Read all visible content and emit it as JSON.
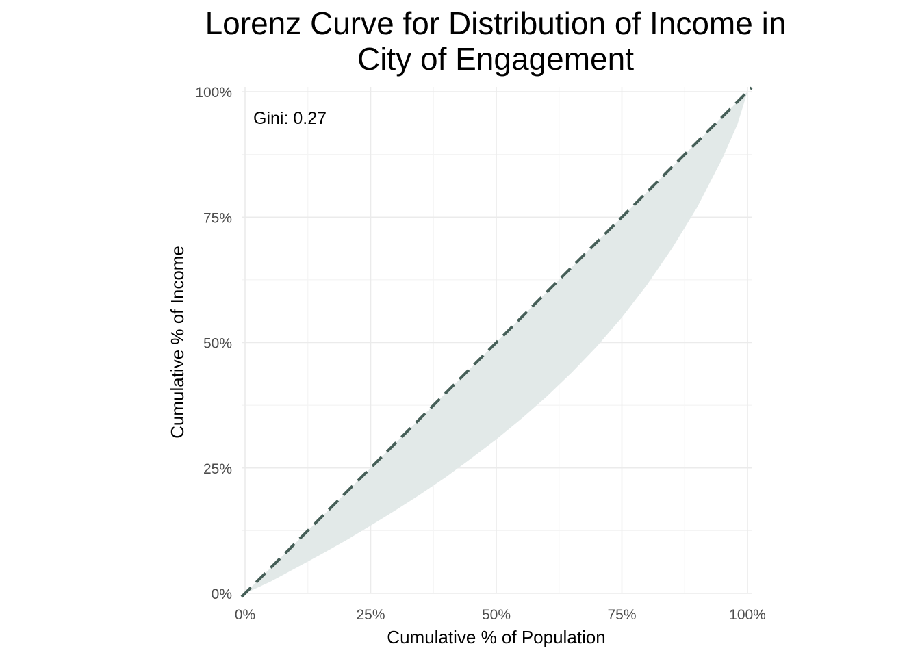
{
  "chart_data": {
    "type": "area",
    "title_lines": [
      "Lorenz Curve for Distribution of Income in",
      "City of Engagement"
    ],
    "xlabel": "Cumulative % of Population",
    "ylabel": "Cumulative % of Income",
    "xlim": [
      0,
      1
    ],
    "ylim": [
      0,
      1
    ],
    "x_ticks": [
      0,
      0.25,
      0.5,
      0.75,
      1
    ],
    "y_ticks": [
      0,
      0.25,
      0.5,
      0.75,
      1
    ],
    "x_tick_labels": [
      "0%",
      "25%",
      "50%",
      "75%",
      "100%"
    ],
    "y_tick_labels": [
      "0%",
      "25%",
      "50%",
      "75%",
      "100%"
    ],
    "minor_grid": [
      0.125,
      0.375,
      0.625,
      0.875
    ],
    "grid": true,
    "annotation": "Gini: 0.27",
    "series": [
      {
        "kind": "lorenz_curve",
        "x": [
          0,
          0.05,
          0.1,
          0.15,
          0.2,
          0.25,
          0.3,
          0.35,
          0.4,
          0.45,
          0.5,
          0.55,
          0.6,
          0.65,
          0.7,
          0.75,
          0.8,
          0.85,
          0.9,
          0.95,
          0.98,
          1
        ],
        "y": [
          0,
          0.023,
          0.05,
          0.077,
          0.105,
          0.135,
          0.166,
          0.198,
          0.232,
          0.269,
          0.307,
          0.348,
          0.392,
          0.44,
          0.492,
          0.55,
          0.615,
          0.688,
          0.77,
          0.867,
          0.935,
          1
        ]
      },
      {
        "kind": "line_of_equality",
        "x": [
          0,
          1
        ],
        "y": [
          0,
          1
        ]
      }
    ],
    "colors": {
      "fill": "#e2e9e8",
      "equality_line": "#465f58",
      "grid_major": "#ebebeb",
      "grid_minor": "#f4f4f4",
      "tick_text": "#4d4d4d",
      "text": "#000000"
    }
  }
}
